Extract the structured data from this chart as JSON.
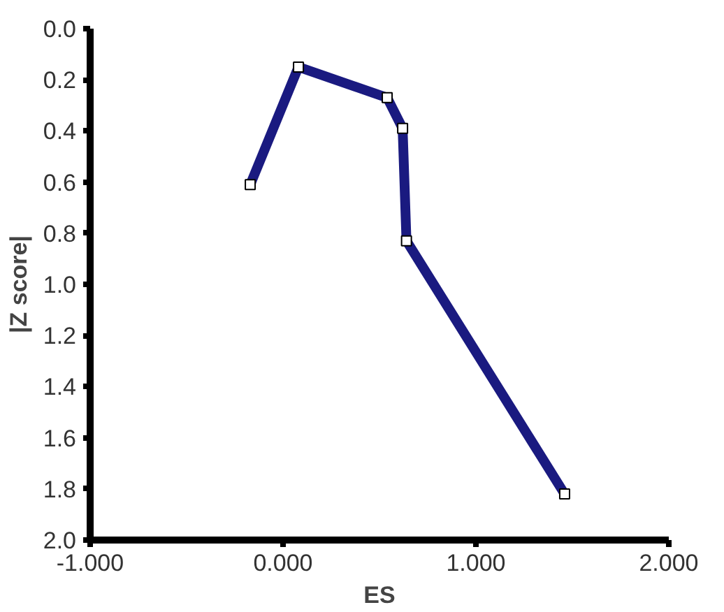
{
  "chart_data": {
    "type": "line",
    "xlabel": "ES",
    "ylabel": "|Z score|",
    "x": [
      -0.17,
      0.08,
      0.54,
      0.62,
      0.64,
      1.46
    ],
    "series": [
      {
        "color": "#1a1a80",
        "values": [
          0.61,
          0.15,
          0.27,
          0.39,
          0.83,
          1.82
        ]
      }
    ],
    "xlim": [
      -1,
      2
    ],
    "ylim": [
      2,
      0
    ],
    "xticks": [
      {
        "value": -1,
        "label": "-1.000"
      },
      {
        "value": 0,
        "label": "0.000"
      },
      {
        "value": 1,
        "label": "1.000"
      },
      {
        "value": 2,
        "label": "2.000"
      }
    ],
    "yticks": [
      {
        "value": 0,
        "label": "0.0"
      },
      {
        "value": 0.2,
        "label": "0.2"
      },
      {
        "value": 0.4,
        "label": "0.4"
      },
      {
        "value": 0.6,
        "label": "0.6"
      },
      {
        "value": 0.8,
        "label": "0.8"
      },
      {
        "value": 1,
        "label": "1.0"
      },
      {
        "value": 1.2,
        "label": "1.2"
      },
      {
        "value": 1.4,
        "label": "1.4"
      },
      {
        "value": 1.6,
        "label": "1.6"
      },
      {
        "value": 1.8,
        "label": "1.8"
      },
      {
        "value": 2,
        "label": "2.0"
      }
    ],
    "grid": false,
    "marker": "square",
    "line_style": "solid"
  }
}
